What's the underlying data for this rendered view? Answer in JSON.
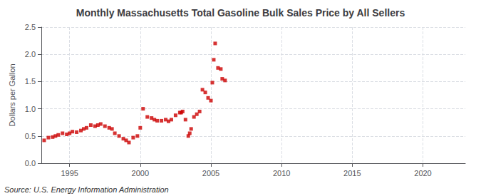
{
  "chart_data": {
    "type": "scatter",
    "title": "Monthly Massachusetts Total Gasoline Bulk Sales Price by All Sellers",
    "ylabel": "Dollars per Gallon",
    "annotations": [
      "Source: U.S. Energy Information Administration"
    ],
    "color": "#cc0000",
    "marker": "square",
    "grid": true,
    "xlim": [
      1993.0,
      2023.0
    ],
    "ylim": [
      0.0,
      2.5
    ],
    "xticks": [
      1995,
      2000,
      2005,
      2010,
      2015,
      2020
    ],
    "yticks": [
      {
        "value": 0.0,
        "label": "0.0"
      },
      0.5,
      {
        "value": 1.0,
        "label": "1.0"
      },
      1.5,
      {
        "value": 2.0,
        "label": "2.0"
      },
      2.5
    ],
    "x": [
      1993.2,
      1993.5,
      1993.8,
      1994.0,
      1994.2,
      1994.5,
      1994.8,
      1995.0,
      1995.2,
      1995.5,
      1995.8,
      1996.0,
      1996.2,
      1996.5,
      1996.8,
      1997.0,
      1997.2,
      1997.5,
      1997.8,
      1998.0,
      1998.2,
      1998.5,
      1998.8,
      1999.0,
      1999.2,
      1999.5,
      1999.8,
      2000.0,
      2000.2,
      2000.5,
      2000.8,
      2001.0,
      2001.2,
      2001.5,
      2001.8,
      2002.0,
      2002.2,
      2002.5,
      2002.8,
      2002.9,
      2003.0,
      2003.2,
      2003.4,
      2003.5,
      2003.6,
      2003.8,
      2004.0,
      2004.2,
      2004.4,
      2004.6,
      2004.8,
      2005.0,
      2005.1,
      2005.2,
      2005.3,
      2005.5,
      2005.7,
      2005.8,
      2006.0
    ],
    "values": [
      0.42,
      0.47,
      0.48,
      0.5,
      0.52,
      0.55,
      0.53,
      0.55,
      0.58,
      0.57,
      0.6,
      0.63,
      0.65,
      0.7,
      0.68,
      0.7,
      0.72,
      0.68,
      0.65,
      0.63,
      0.55,
      0.5,
      0.45,
      0.42,
      0.38,
      0.47,
      0.5,
      0.65,
      1.0,
      0.85,
      0.83,
      0.8,
      0.78,
      0.78,
      0.8,
      0.77,
      0.8,
      0.88,
      0.93,
      0.93,
      0.95,
      0.8,
      0.5,
      0.55,
      0.63,
      0.85,
      0.9,
      0.95,
      1.35,
      1.3,
      1.2,
      1.15,
      1.48,
      1.9,
      2.2,
      1.75,
      1.73,
      1.55,
      1.52
    ]
  }
}
